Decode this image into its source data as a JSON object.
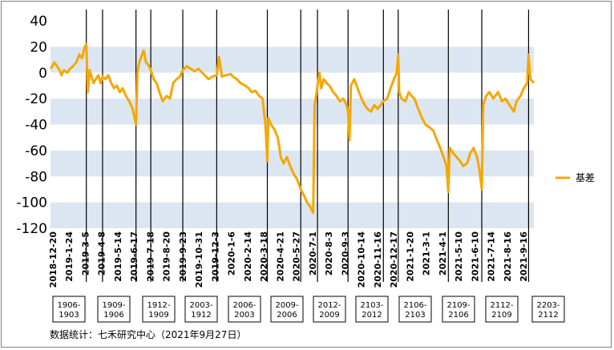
{
  "chart_data": {
    "type": "line",
    "title": "",
    "xlabel": "",
    "ylabel": "",
    "ylim": [
      -120,
      40
    ],
    "yticks": [
      "40",
      "20",
      "0",
      "-20",
      "-40",
      "-60",
      "-80",
      "-100",
      "-120"
    ],
    "ytick_values": [
      40,
      20,
      0,
      -20,
      -40,
      -60,
      -80,
      -100,
      -120
    ],
    "x_start": "2018-12-20",
    "x_end": "2021-9-27",
    "xtick_labels": [
      "2018-12-20",
      "2019-1-24",
      "2019-3-5",
      "2019-4-8",
      "2019-5-14",
      "2019-6-17",
      "2019-7-18",
      "2019-8-20",
      "2019-9-23",
      "2019-10-31",
      "2019-12-3",
      "2020-1-6",
      "2020-2-14",
      "2020-3-18",
      "2020-4-21",
      "2020-5-27",
      "2020-7-1",
      "2020-8-3",
      "2020-9-3",
      "2020-10-14",
      "2020-11-16",
      "2020-12-17",
      "2021-1-20",
      "2021-3-1",
      "2021-4-1",
      "2021-5-10",
      "2021-6-10",
      "2021-7-14",
      "2021-8-16",
      "2021-9-16"
    ],
    "bands": [
      [
        0,
        20
      ],
      [
        -40,
        -20
      ],
      [
        -80,
        -60
      ],
      [
        -120,
        -100
      ]
    ],
    "band_color": "#dce6f2",
    "line_color": "#f5a800",
    "legend": {
      "position": "right",
      "label": "基差"
    },
    "contract_switches": [
      "2019-3-5",
      "2019-4-8",
      "2019-6-17",
      "2019-7-18",
      "2019-9-23",
      "2019-12-3",
      "2020-3-18",
      "2020-5-27",
      "2020-7-1",
      "2020-9-3",
      "2020-11-16",
      "2020-12-17",
      "2021-4-1",
      "2021-6-10",
      "2021-9-16"
    ],
    "contracts": [
      "1906-\n1903",
      "1909-\n1906",
      "1912-\n1909",
      "2003-\n1912",
      "2006-\n2003",
      "2009-\n2006",
      "2012-\n2009",
      "2103-\n2012",
      "2106-\n2103",
      "2109-\n2106",
      "2112-\n2109",
      "2203-\n2112"
    ],
    "series": [
      {
        "name": "基差",
        "points": [
          [
            "2018-12-20",
            3
          ],
          [
            "2018-12-24",
            5
          ],
          [
            "2018-12-28",
            8
          ],
          [
            "2019-1-3",
            5
          ],
          [
            "2019-1-8",
            2
          ],
          [
            "2019-1-12",
            -2
          ],
          [
            "2019-1-17",
            2
          ],
          [
            "2019-1-24",
            0
          ],
          [
            "2019-1-30",
            3
          ],
          [
            "2019-2-5",
            5
          ],
          [
            "2019-2-12",
            8
          ],
          [
            "2019-2-18",
            14
          ],
          [
            "2019-2-24",
            11
          ],
          [
            "2019-3-1",
            19
          ],
          [
            "2019-3-5",
            22
          ],
          [
            "2019-3-8",
            -15
          ],
          [
            "2019-3-12",
            2
          ],
          [
            "2019-3-16",
            -3
          ],
          [
            "2019-3-20",
            -8
          ],
          [
            "2019-3-25",
            -5
          ],
          [
            "2019-3-30",
            -2
          ],
          [
            "2019-4-4",
            -8
          ],
          [
            "2019-4-8",
            -3
          ],
          [
            "2019-4-14",
            -5
          ],
          [
            "2019-4-20",
            -2
          ],
          [
            "2019-4-26",
            -8
          ],
          [
            "2019-5-2",
            -12
          ],
          [
            "2019-5-8",
            -10
          ],
          [
            "2019-5-14",
            -15
          ],
          [
            "2019-5-20",
            -12
          ],
          [
            "2019-5-27",
            -18
          ],
          [
            "2019-6-3",
            -22
          ],
          [
            "2019-6-10",
            -28
          ],
          [
            "2019-6-17",
            -40
          ],
          [
            "2019-6-20",
            0
          ],
          [
            "2019-6-24",
            8
          ],
          [
            "2019-6-28",
            12
          ],
          [
            "2019-7-3",
            17
          ],
          [
            "2019-7-8",
            8
          ],
          [
            "2019-7-13",
            6
          ],
          [
            "2019-7-18",
            2
          ],
          [
            "2019-7-24",
            -5
          ],
          [
            "2019-7-30",
            -8
          ],
          [
            "2019-8-5",
            -15
          ],
          [
            "2019-8-12",
            -22
          ],
          [
            "2019-8-20",
            -18
          ],
          [
            "2019-8-27",
            -20
          ],
          [
            "2019-9-3",
            -8
          ],
          [
            "2019-9-10",
            -5
          ],
          [
            "2019-9-17",
            -3
          ],
          [
            "2019-9-23",
            2
          ],
          [
            "2019-10-1",
            5
          ],
          [
            "2019-10-10",
            3
          ],
          [
            "2019-10-18",
            1
          ],
          [
            "2019-10-26",
            3
          ],
          [
            "2019-10-31",
            1
          ],
          [
            "2019-11-8",
            -2
          ],
          [
            "2019-11-16",
            -5
          ],
          [
            "2019-11-24",
            -3
          ],
          [
            "2019-12-3",
            -2
          ],
          [
            "2019-12-8",
            12
          ],
          [
            "2019-12-14",
            -3
          ],
          [
            "2019-12-22",
            -2
          ],
          [
            "2020-1-1",
            -1
          ],
          [
            "2020-1-6",
            -3
          ],
          [
            "2020-1-14",
            -5
          ],
          [
            "2020-1-22",
            -8
          ],
          [
            "2020-2-1",
            -10
          ],
          [
            "2020-2-8",
            -12
          ],
          [
            "2020-2-14",
            -15
          ],
          [
            "2020-2-22",
            -14
          ],
          [
            "2020-3-1",
            -18
          ],
          [
            "2020-3-8",
            -20
          ],
          [
            "2020-3-14",
            -40
          ],
          [
            "2020-3-18",
            -68
          ],
          [
            "2020-3-20",
            -35
          ],
          [
            "2020-3-26",
            -40
          ],
          [
            "2020-4-2",
            -44
          ],
          [
            "2020-4-9",
            -50
          ],
          [
            "2020-4-15",
            -65
          ],
          [
            "2020-4-21",
            -70
          ],
          [
            "2020-4-28",
            -65
          ],
          [
            "2020-5-5",
            -72
          ],
          [
            "2020-5-12",
            -78
          ],
          [
            "2020-5-19",
            -82
          ],
          [
            "2020-5-27",
            -90
          ],
          [
            "2020-6-3",
            -95
          ],
          [
            "2020-6-9",
            -100
          ],
          [
            "2020-6-15",
            -103
          ],
          [
            "2020-6-22",
            -108
          ],
          [
            "2020-6-25",
            -25
          ],
          [
            "2020-6-28",
            -18
          ],
          [
            "2020-7-1",
            -10
          ],
          [
            "2020-7-5",
            0
          ],
          [
            "2020-7-9",
            -12
          ],
          [
            "2020-7-14",
            -5
          ],
          [
            "2020-7-20",
            -8
          ],
          [
            "2020-7-26",
            -10
          ],
          [
            "2020-8-3",
            -15
          ],
          [
            "2020-8-10",
            -18
          ],
          [
            "2020-8-17",
            -22
          ],
          [
            "2020-8-24",
            -20
          ],
          [
            "2020-8-31",
            -25
          ],
          [
            "2020-9-3",
            -30
          ],
          [
            "2020-9-6",
            -52
          ],
          [
            "2020-9-9",
            -10
          ],
          [
            "2020-9-16",
            -5
          ],
          [
            "2020-9-23",
            -12
          ],
          [
            "2020-10-1",
            -20
          ],
          [
            "2020-10-8",
            -25
          ],
          [
            "2020-10-14",
            -28
          ],
          [
            "2020-10-21",
            -30
          ],
          [
            "2020-10-28",
            -25
          ],
          [
            "2020-11-4",
            -28
          ],
          [
            "2020-11-10",
            -25
          ],
          [
            "2020-11-16",
            -22
          ],
          [
            "2020-11-24",
            -20
          ],
          [
            "2020-12-1",
            -12
          ],
          [
            "2020-12-8",
            -5
          ],
          [
            "2020-12-14",
            0
          ],
          [
            "2020-12-17",
            14
          ],
          [
            "2020-12-19",
            -15
          ],
          [
            "2020-12-24",
            -20
          ],
          [
            "2021-1-1",
            -22
          ],
          [
            "2021-1-8",
            -15
          ],
          [
            "2021-1-14",
            -18
          ],
          [
            "2021-1-20",
            -20
          ],
          [
            "2021-1-28",
            -28
          ],
          [
            "2021-2-5",
            -35
          ],
          [
            "2021-2-12",
            -40
          ],
          [
            "2021-2-20",
            -42
          ],
          [
            "2021-3-1",
            -45
          ],
          [
            "2021-3-8",
            -52
          ],
          [
            "2021-3-15",
            -58
          ],
          [
            "2021-3-22",
            -65
          ],
          [
            "2021-3-28",
            -72
          ],
          [
            "2021-4-1",
            -92
          ],
          [
            "2021-4-4",
            -58
          ],
          [
            "2021-4-11",
            -62
          ],
          [
            "2021-4-18",
            -65
          ],
          [
            "2021-4-25",
            -68
          ],
          [
            "2021-5-2",
            -72
          ],
          [
            "2021-5-10",
            -70
          ],
          [
            "2021-5-17",
            -62
          ],
          [
            "2021-5-24",
            -58
          ],
          [
            "2021-5-31",
            -65
          ],
          [
            "2021-6-5",
            -75
          ],
          [
            "2021-6-10",
            -90
          ],
          [
            "2021-6-13",
            -25
          ],
          [
            "2021-6-19",
            -18
          ],
          [
            "2021-6-26",
            -15
          ],
          [
            "2021-7-4",
            -20
          ],
          [
            "2021-7-14",
            -15
          ],
          [
            "2021-7-22",
            -22
          ],
          [
            "2021-7-30",
            -20
          ],
          [
            "2021-8-7",
            -25
          ],
          [
            "2021-8-16",
            -30
          ],
          [
            "2021-8-22",
            -22
          ],
          [
            "2021-8-30",
            -18
          ],
          [
            "2021-9-6",
            -12
          ],
          [
            "2021-9-13",
            -8
          ],
          [
            "2021-9-16",
            14
          ],
          [
            "2021-9-20",
            -5
          ],
          [
            "2021-9-27",
            -8
          ]
        ]
      }
    ]
  },
  "source_note": "数据统计：七禾研究中心（2021年9月27日）"
}
